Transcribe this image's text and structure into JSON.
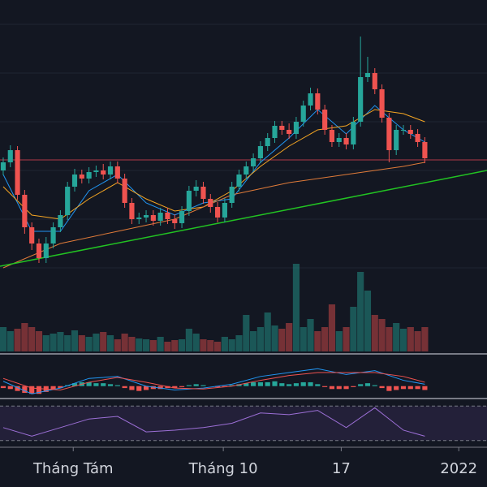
{
  "chart_data": {
    "type": "candlestick",
    "xlim": [
      -0.45,
      67.7
    ],
    "xticks": [
      {
        "value": 9.8,
        "label": "Tháng Tám"
      },
      {
        "value": 30.8,
        "label": "Tháng 10"
      },
      {
        "value": 47.3,
        "label": "17"
      },
      {
        "value": 63.75,
        "label": "2022"
      }
    ],
    "ylim": [
      0,
      600
    ],
    "up_color": "#26a69a",
    "down_color": "#ef5350",
    "candles": [
      [
        390,
        406,
        384,
        400
      ],
      [
        400,
        421,
        394,
        415
      ],
      [
        415,
        420,
        354,
        360
      ],
      [
        360,
        366,
        312,
        320
      ],
      [
        320,
        326,
        292,
        300
      ],
      [
        300,
        306,
        276,
        282
      ],
      [
        282,
        308,
        276,
        300
      ],
      [
        300,
        326,
        294,
        320
      ],
      [
        320,
        341,
        314,
        335
      ],
      [
        335,
        376,
        329,
        370
      ],
      [
        370,
        392,
        364,
        385
      ],
      [
        385,
        391,
        374,
        380
      ],
      [
        380,
        394,
        374,
        388
      ],
      [
        388,
        396,
        382,
        390
      ],
      [
        390,
        398,
        379,
        385
      ],
      [
        385,
        401,
        379,
        395
      ],
      [
        395,
        401,
        374,
        380
      ],
      [
        380,
        386,
        344,
        350
      ],
      [
        350,
        356,
        324,
        330
      ],
      [
        330,
        338,
        324,
        332
      ],
      [
        332,
        341,
        326,
        335
      ],
      [
        335,
        341,
        322,
        328
      ],
      [
        328,
        344,
        322,
        338
      ],
      [
        338,
        344,
        324,
        330
      ],
      [
        330,
        336,
        318,
        325
      ],
      [
        325,
        346,
        319,
        340
      ],
      [
        340,
        371,
        334,
        365
      ],
      [
        365,
        378,
        358,
        370
      ],
      [
        370,
        376,
        349,
        355
      ],
      [
        355,
        361,
        338,
        345
      ],
      [
        345,
        351,
        326,
        332
      ],
      [
        332,
        356,
        326,
        350
      ],
      [
        350,
        376,
        344,
        370
      ],
      [
        370,
        391,
        364,
        385
      ],
      [
        385,
        401,
        379,
        395
      ],
      [
        395,
        411,
        389,
        405
      ],
      [
        405,
        426,
        399,
        420
      ],
      [
        420,
        436,
        414,
        430
      ],
      [
        430,
        451,
        424,
        445
      ],
      [
        445,
        451,
        434,
        440
      ],
      [
        440,
        448,
        429,
        435
      ],
      [
        435,
        456,
        429,
        450
      ],
      [
        450,
        476,
        444,
        470
      ],
      [
        470,
        492,
        464,
        485
      ],
      [
        485,
        491,
        459,
        465
      ],
      [
        465,
        471,
        434,
        440
      ],
      [
        440,
        446,
        419,
        425
      ],
      [
        425,
        436,
        419,
        430
      ],
      [
        430,
        436,
        416,
        422
      ],
      [
        422,
        456,
        416,
        450
      ],
      [
        450,
        555,
        444,
        505
      ],
      [
        505,
        530,
        499,
        510
      ],
      [
        510,
        516,
        484,
        490
      ],
      [
        490,
        496,
        449,
        455
      ],
      [
        455,
        461,
        400,
        415
      ],
      [
        415,
        446,
        409,
        440
      ],
      [
        440,
        446,
        434,
        440
      ],
      [
        440,
        446,
        429,
        435
      ],
      [
        435,
        441,
        419,
        425
      ],
      [
        425,
        431,
        399,
        405
      ]
    ],
    "lines": [
      {
        "color": "#2196f3",
        "x": [
          0,
          4,
          8,
          12,
          16,
          20,
          24,
          28,
          32,
          36,
          40,
          44,
          48,
          52,
          56,
          59
        ],
        "values": [
          385,
          315,
          315,
          365,
          385,
          350,
          335,
          350,
          355,
          400,
          430,
          465,
          435,
          470,
          440,
          425
        ]
      },
      {
        "color": "#f5a623",
        "x": [
          0,
          4,
          8,
          12,
          16,
          20,
          24,
          28,
          32,
          36,
          40,
          44,
          48,
          52,
          56,
          59
        ],
        "values": [
          370,
          335,
          330,
          355,
          375,
          355,
          340,
          345,
          365,
          395,
          420,
          440,
          445,
          465,
          460,
          450
        ]
      },
      {
        "color": "#e07b39",
        "x": [
          0,
          8,
          16,
          24,
          32,
          40,
          48,
          56,
          59
        ],
        "values": [
          270,
          300,
          315,
          330,
          360,
          375,
          385,
          395,
          400
        ]
      },
      {
        "color": "#22c322",
        "x": [
          -0.45,
          67.7
        ],
        "values": [
          272,
          390
        ]
      }
    ],
    "hline": {
      "value": 403,
      "color": "#b23a48"
    },
    "volume": {
      "ylim": [
        0,
        120
      ],
      "values": [
        30,
        25,
        28,
        35,
        30,
        25,
        20,
        22,
        24,
        20,
        26,
        20,
        18,
        22,
        24,
        20,
        15,
        22,
        18,
        16,
        15,
        14,
        18,
        12,
        14,
        15,
        28,
        22,
        15,
        14,
        12,
        18,
        15,
        20,
        45,
        25,
        30,
        48,
        32,
        28,
        35,
        108,
        30,
        40,
        25,
        30,
        58,
        25,
        30,
        55,
        98,
        75,
        45,
        40,
        30,
        35,
        28,
        30,
        25,
        30
      ]
    },
    "macd": {
      "ylim": [
        -12,
        30
      ],
      "histogram": [
        -2,
        -3,
        -5,
        -7,
        -8,
        -8,
        -6,
        -4,
        -2,
        1,
        3,
        4,
        4,
        3,
        3,
        2,
        1,
        -2,
        -4,
        -5,
        -4,
        -3,
        -3,
        -2,
        -2,
        -1,
        1,
        2,
        1,
        0,
        -1,
        -1,
        1,
        2,
        3,
        4,
        4,
        4,
        5,
        3,
        2,
        3,
        4,
        4,
        2,
        -1,
        -3,
        -3,
        -3,
        -1,
        2,
        3,
        1,
        -2,
        -5,
        -4,
        -3,
        -3,
        -3,
        -4
      ],
      "series": [
        {
          "color": "#2196f3",
          "x": [
            0,
            4,
            8,
            12,
            16,
            20,
            24,
            28,
            32,
            36,
            40,
            44,
            48,
            52,
            56,
            59
          ],
          "values": [
            5,
            -8,
            -2,
            8,
            10,
            0,
            -4,
            -2,
            2,
            10,
            14,
            18,
            12,
            16,
            6,
            2
          ]
        },
        {
          "color": "#ef5350",
          "x": [
            0,
            4,
            8,
            12,
            16,
            20,
            24,
            28,
            32,
            36,
            40,
            44,
            48,
            52,
            56,
            59
          ],
          "values": [
            8,
            -2,
            -4,
            4,
            9,
            4,
            -2,
            -3,
            0,
            6,
            11,
            14,
            14,
            14,
            10,
            4
          ]
        }
      ]
    },
    "rsi": {
      "ylim": [
        25,
        75
      ],
      "bands": [
        30,
        70
      ],
      "color": "#9c6fd6",
      "x": [
        0,
        4,
        8,
        12,
        16,
        20,
        24,
        28,
        32,
        36,
        40,
        44,
        48,
        52,
        56,
        59
      ],
      "values": [
        45,
        35,
        45,
        55,
        58,
        40,
        42,
        45,
        50,
        62,
        60,
        65,
        45,
        68,
        42,
        35
      ]
    }
  }
}
